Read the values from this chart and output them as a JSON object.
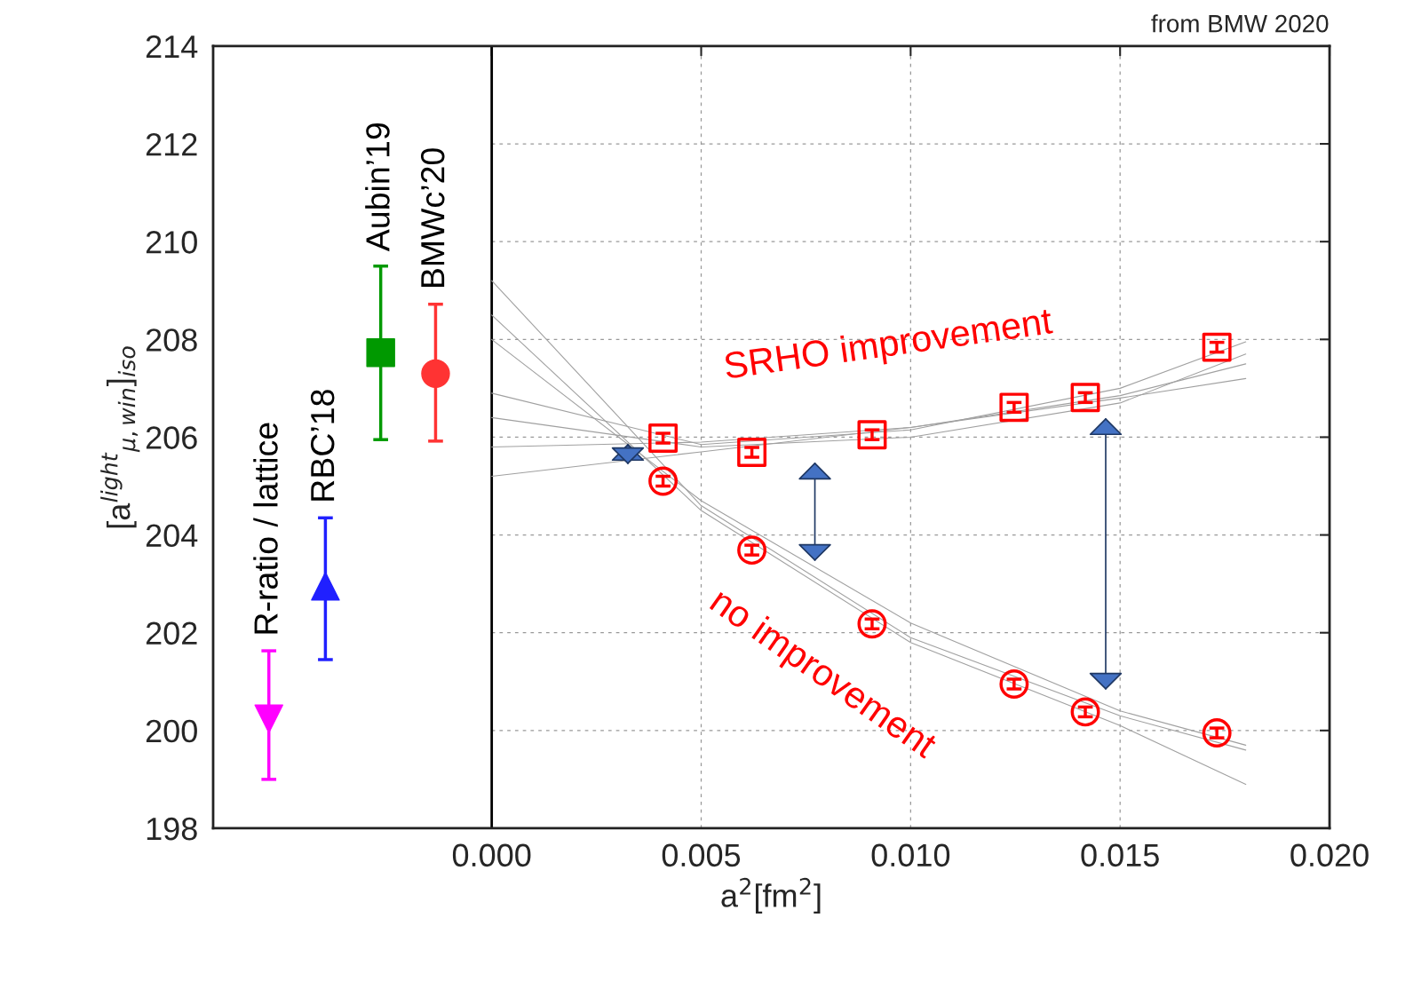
{
  "chart_data": {
    "type": "scatter",
    "xlabel": "a$^{2}$[fm$^{2}$]",
    "ylabel": "[a$^{light}$$_{μ,win}$]$_{iso}$",
    "xlim": [
      -0.00665,
      0.02
    ],
    "ylim": [
      198,
      214
    ],
    "xticks": [
      {
        "value": 0,
        "label": "0.000"
      },
      {
        "value": 0.005,
        "label": "0.005"
      },
      {
        "value": 0.01,
        "label": "0.010"
      },
      {
        "value": 0.015,
        "label": "0.015"
      },
      {
        "value": 0.02,
        "label": "0.020"
      }
    ],
    "yticks": [
      198,
      200,
      202,
      204,
      206,
      208,
      210,
      212,
      214
    ],
    "grid": true,
    "legend": false,
    "ref_lines": [
      {
        "axis": "x",
        "value": 0,
        "color": "#000000",
        "line_style": "solid"
      }
    ],
    "series": [
      {
        "type": "line",
        "color": "#a0a0a0",
        "x": [
          0,
          0.005,
          0.01,
          0.015,
          0.018
        ],
        "values": [
          206.9,
          205.85,
          206.15,
          207.0,
          207.95
        ]
      },
      {
        "type": "line",
        "color": "#a0a0a0",
        "x": [
          0,
          0.005,
          0.01,
          0.015,
          0.018
        ],
        "values": [
          205.8,
          205.9,
          206.2,
          206.85,
          207.5
        ]
      },
      {
        "type": "line",
        "color": "#a0a0a0",
        "x": [
          0,
          0.005,
          0.01,
          0.015,
          0.018
        ],
        "values": [
          205.2,
          205.7,
          206.2,
          206.8,
          207.2
        ]
      },
      {
        "type": "line",
        "color": "#a0a0a0",
        "x": [
          0,
          0.005,
          0.01,
          0.015,
          0.018
        ],
        "values": [
          206.4,
          205.8,
          206.0,
          206.7,
          207.7
        ]
      },
      {
        "type": "line",
        "color": "#a0a0a0",
        "x": [
          0,
          0.005,
          0.01,
          0.015,
          0.018
        ],
        "values": [
          209.2,
          204.6,
          201.9,
          200.3,
          199.6
        ]
      },
      {
        "type": "line",
        "color": "#a0a0a0",
        "x": [
          0,
          0.005,
          0.01,
          0.015,
          0.018
        ],
        "values": [
          208.5,
          204.5,
          201.8,
          200.1,
          198.9
        ]
      },
      {
        "type": "line",
        "color": "#a0a0a0",
        "x": [
          0,
          0.005,
          0.01,
          0.015,
          0.018
        ],
        "values": [
          208.0,
          204.7,
          202.2,
          200.4,
          199.7
        ]
      },
      {
        "color": "#ff0000",
        "marker": "square",
        "x": [
          0.00409,
          0.00621,
          0.00908,
          0.01247,
          0.01417,
          0.01731
        ],
        "values": [
          205.98,
          205.69,
          206.05,
          206.61,
          206.81,
          207.84
        ],
        "errors": [
          0.1,
          0.1,
          0.1,
          0.1,
          0.1,
          0.1
        ]
      },
      {
        "color": "#ff0000",
        "marker": "circle",
        "x": [
          0.00409,
          0.00621,
          0.00908,
          0.01247,
          0.01417,
          0.01731
        ],
        "values": [
          205.1,
          203.69,
          202.18,
          200.95,
          200.38,
          199.95
        ],
        "errors": [
          0.1,
          0.1,
          0.1,
          0.1,
          0.1,
          0.1
        ]
      },
      {
        "name": "R-ratio / lattice",
        "color": "#ff00ff",
        "marker": "triangle_down",
        "x": [
          -0.00532
        ],
        "values": [
          200.24
        ],
        "errors": [
          [
            199.0,
            201.63
          ]
        ]
      },
      {
        "name": "RBC’18",
        "color": "#2020ff",
        "marker": "triangle",
        "x": [
          -0.00397
        ],
        "values": [
          202.95
        ],
        "errors": [
          [
            201.45,
            204.35
          ]
        ]
      },
      {
        "name": "Aubin’19",
        "color": "#009900",
        "marker": "square",
        "x": [
          -0.00265
        ],
        "values": [
          207.73
        ],
        "errors": [
          [
            205.95,
            209.5
          ]
        ]
      },
      {
        "name": "BMWc’20",
        "color": "#ff3333",
        "marker": "circle",
        "x": [
          -0.00134
        ],
        "values": [
          207.3
        ],
        "errors": [
          [
            205.92,
            208.72
          ]
        ]
      }
    ],
    "annotations": [
      "SRHO improvement",
      "no improvement",
      "from BMW 2020"
    ]
  }
}
